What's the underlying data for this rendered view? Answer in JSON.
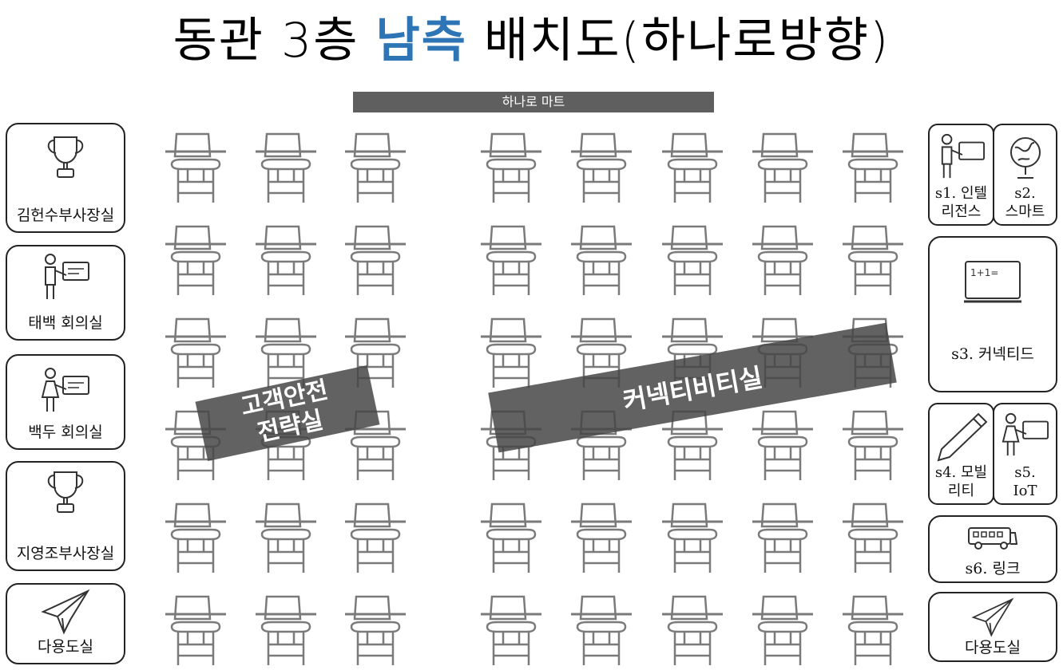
{
  "title": {
    "prefix": "동관 3층 ",
    "accent": "남측",
    "suffix": " 배치도(하나로방향)"
  },
  "top_label": "하나로 마트",
  "left_rooms": [
    {
      "label": "김헌수부사장실",
      "icon": "trophy-icon"
    },
    {
      "label": "태백 회의실",
      "icon": "presenter-man-icon"
    },
    {
      "label": "백두 회의실",
      "icon": "presenter-woman-icon"
    },
    {
      "label": "지영조부사장실",
      "icon": "trophy-icon"
    },
    {
      "label": "다용도실",
      "icon": "paper-plane-icon"
    }
  ],
  "right_rooms": {
    "s1": "s1. 인텔\n리전스",
    "s2": "s2.\n스마트",
    "s3": "s3. 커넥티드",
    "s4": "s4. 모빌\n리티",
    "s5": "s5.\nIoT",
    "s6": "s6. 링크",
    "util": "다용도실"
  },
  "zones": {
    "left": "고객안전\n전략실",
    "right": "커넥티비티실"
  },
  "colors": {
    "accent": "#2e75b6",
    "band": "#5f5f5f"
  }
}
